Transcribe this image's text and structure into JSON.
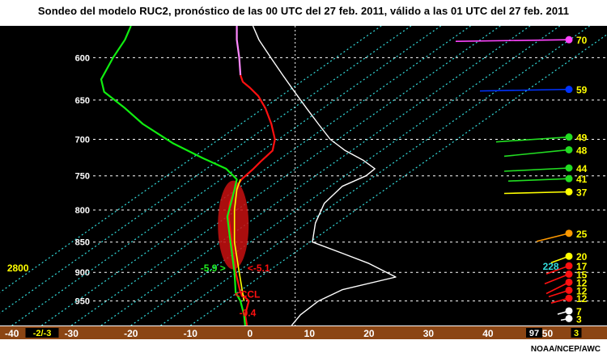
{
  "title": "Sondeo del modelo RUC2, pronóstico de las 00 UTC del 27 feb. 2011, válido a las 01 UTC del 27 feb. 2011",
  "credit": "NOAA/NCEP/AWC",
  "colors": {
    "background": "#000000",
    "temperature": "#ff1010",
    "dewpoint": "#10ee10",
    "parcel": "#ffff00",
    "wind_speed_profile": "#ffffff",
    "isotherm": "#33dddd",
    "axis_bar": "#8b4513",
    "gridline": "#ffffff",
    "label": "#ffffff"
  },
  "chart_data": {
    "type": "line",
    "title": "Sondeo del modelo RUC2, pronóstico de las 00 UTC del 27 feb. 2011, válido a las 01 UTC del 27 feb. 2011",
    "xlim": [
      -42,
      60
    ],
    "ylim": [
      995,
      565
    ],
    "y_scale": "log",
    "grid": true,
    "y_ticks": [
      600,
      650,
      700,
      750,
      800,
      850,
      900,
      950
    ],
    "y_tick_labels": [
      "600",
      "650",
      "700",
      "750",
      "800",
      "850",
      "900",
      "950"
    ],
    "x_ticks": [
      -40,
      -30,
      -20,
      -10,
      0,
      10,
      20,
      30,
      40,
      50
    ],
    "x_tick_labels": [
      "-40",
      "-30",
      "-20",
      "-10",
      "0",
      "10",
      "20",
      "30",
      "40",
      "50"
    ],
    "skew_isotherms": [
      -50,
      -45,
      -40,
      -35,
      -30,
      -25,
      -20,
      -15,
      -10
    ],
    "series": [
      {
        "key": "temperature",
        "points": [
          [
            -0.5,
            995
          ],
          [
            -0.8,
            975
          ],
          [
            -0.2,
            950
          ],
          [
            -1.6,
            935
          ],
          [
            -2.4,
            900
          ],
          [
            -2.8,
            870
          ],
          [
            -3.2,
            840
          ],
          [
            -3.6,
            810
          ],
          [
            -3.4,
            790
          ],
          [
            -2.6,
            770
          ],
          [
            -1.4,
            755
          ],
          [
            0.6,
            740
          ],
          [
            1.8,
            730
          ],
          [
            3.8,
            715
          ],
          [
            4.2,
            700
          ],
          [
            3.6,
            680
          ],
          [
            2.6,
            660
          ],
          [
            1.4,
            645
          ],
          [
            0.0,
            635
          ],
          [
            -1.2,
            628
          ],
          [
            -1.6,
            620
          ]
        ]
      },
      {
        "key": "temperature_upper",
        "points": [
          [
            -1.6,
            620
          ],
          [
            -1.8,
            600
          ],
          [
            -2.2,
            580
          ],
          [
            -2.2,
            565
          ]
        ]
      },
      {
        "key": "dewpoint",
        "points": [
          [
            -0.8,
            995
          ],
          [
            -1.0,
            975
          ],
          [
            -1.6,
            950
          ],
          [
            -2.4,
            935
          ],
          [
            -2.6,
            900
          ],
          [
            -3.0,
            870
          ],
          [
            -3.4,
            840
          ],
          [
            -3.8,
            810
          ],
          [
            -3.2,
            790
          ],
          [
            -2.6,
            770
          ],
          [
            -2.2,
            755
          ],
          [
            -4.0,
            740
          ],
          [
            -8.0,
            725
          ],
          [
            -13.0,
            705
          ],
          [
            -18.0,
            680
          ],
          [
            -21.0,
            660
          ],
          [
            -24.5,
            640
          ],
          [
            -25.0,
            625
          ],
          [
            -23.0,
            600
          ],
          [
            -21.0,
            580
          ],
          [
            -20.0,
            565
          ]
        ]
      },
      {
        "key": "parcel",
        "points": [
          [
            -1.0,
            950
          ],
          [
            -1.8,
            900
          ],
          [
            -2.6,
            850
          ],
          [
            -2.6,
            800
          ],
          [
            -2.2,
            770
          ],
          [
            -1.6,
            755
          ]
        ]
      },
      {
        "key": "wind_speed_profile",
        "points": [
          [
            7,
            995
          ],
          [
            8.5,
            975
          ],
          [
            11.5,
            950
          ],
          [
            15.5,
            930
          ],
          [
            24.5,
            908
          ],
          [
            20.0,
            885
          ],
          [
            15.5,
            868
          ],
          [
            10.5,
            850
          ],
          [
            11.0,
            820
          ],
          [
            12.5,
            790
          ],
          [
            15.5,
            765
          ],
          [
            19.5,
            750
          ],
          [
            21.0,
            740
          ],
          [
            19.0,
            728
          ],
          [
            16.0,
            715
          ],
          [
            13.5,
            700
          ],
          [
            11.5,
            680
          ],
          [
            9.5,
            660
          ],
          [
            7.5,
            640
          ],
          [
            5.5,
            620
          ],
          [
            3.5,
            600
          ],
          [
            1.5,
            580
          ],
          [
            0.5,
            565
          ]
        ]
      }
    ],
    "wind_speeds": [
      {
        "pressure": 580,
        "value": "70",
        "color": "#ff44ff"
      },
      {
        "pressure": 637,
        "value": "59",
        "color": "#0033ff"
      },
      {
        "pressure": 697,
        "value": "49",
        "color": "#22dd22"
      },
      {
        "pressure": 714,
        "value": "48",
        "color": "#22dd22"
      },
      {
        "pressure": 739,
        "value": "44",
        "color": "#22dd22"
      },
      {
        "pressure": 754,
        "value": "41",
        "color": "#22dd22"
      },
      {
        "pressure": 773,
        "value": "37",
        "color": "#ffff00"
      },
      {
        "pressure": 836,
        "value": "25",
        "color": "#ff9900"
      },
      {
        "pressure": 873,
        "value": "20",
        "color": "#ffff00"
      },
      {
        "pressure": 889,
        "value": "17",
        "color": "#ff1010"
      },
      {
        "pressure": 903,
        "value": "15",
        "color": "#ff1010"
      },
      {
        "pressure": 917,
        "value": "12",
        "color": "#ff1010"
      },
      {
        "pressure": 931,
        "value": "12",
        "color": "#ff1010"
      },
      {
        "pressure": 945,
        "value": "12",
        "color": "#ff1010"
      },
      {
        "pressure": 968,
        "value": "7",
        "color": "#ffffff"
      },
      {
        "pressure": 982,
        "value": "3",
        "color": "#ffffff"
      }
    ],
    "annotations": [
      {
        "text": "-5.9 >",
        "x": -8.3,
        "p": 893,
        "color": "#22ee22"
      },
      {
        "text": "<-5.1",
        "x": -0.4,
        "p": 893,
        "color": "#ff1010"
      },
      {
        "text": "<CCL",
        "x": -2.6,
        "p": 938,
        "color": "#ff1010"
      },
      {
        "text": "-0.4",
        "x": -1.8,
        "p": 972,
        "color": "#ff1010"
      },
      {
        "text": "2800",
        "x": -40.8,
        "p": 893,
        "color": "#ffff00"
      },
      {
        "text": "228",
        "x": 49.2,
        "p": 890,
        "color": "#33dddd"
      }
    ],
    "axis_badges": [
      {
        "text": "-2/-3",
        "color": "#ffff00",
        "bg": "#000000"
      },
      {
        "text": "97",
        "color": "#ffffff",
        "bg": "#000000"
      },
      {
        "text": "3",
        "color": "#ffff00",
        "bg": "#000000"
      }
    ]
  }
}
